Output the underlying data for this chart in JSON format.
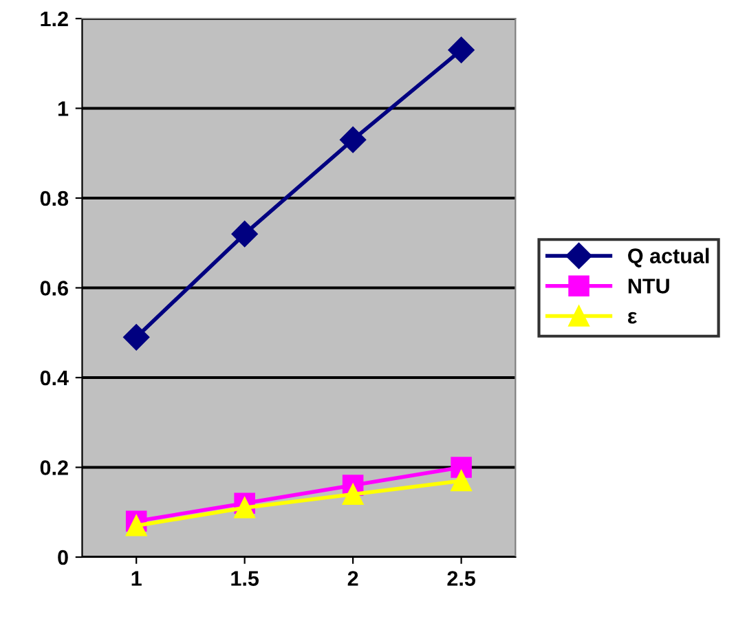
{
  "chart_data": {
    "type": "line",
    "categories": [
      "1",
      "1.5",
      "2",
      "2.5"
    ],
    "series": [
      {
        "name": "Q actual",
        "color": "#000080",
        "marker": "diamond",
        "values": [
          0.49,
          0.72,
          0.93,
          1.13
        ]
      },
      {
        "name": "NTU",
        "color": "#ff00ff",
        "marker": "square",
        "values": [
          0.08,
          0.12,
          0.16,
          0.2
        ]
      },
      {
        "name": "ε",
        "color": "#ffff00",
        "marker": "triangle",
        "values": [
          0.07,
          0.11,
          0.14,
          0.17
        ]
      }
    ],
    "ylim": [
      0,
      1.2
    ],
    "yticks": [
      0,
      0.2,
      0.4,
      0.6,
      0.8,
      1,
      1.2
    ],
    "grid": "y",
    "legend": "right",
    "line_style": "solid"
  }
}
